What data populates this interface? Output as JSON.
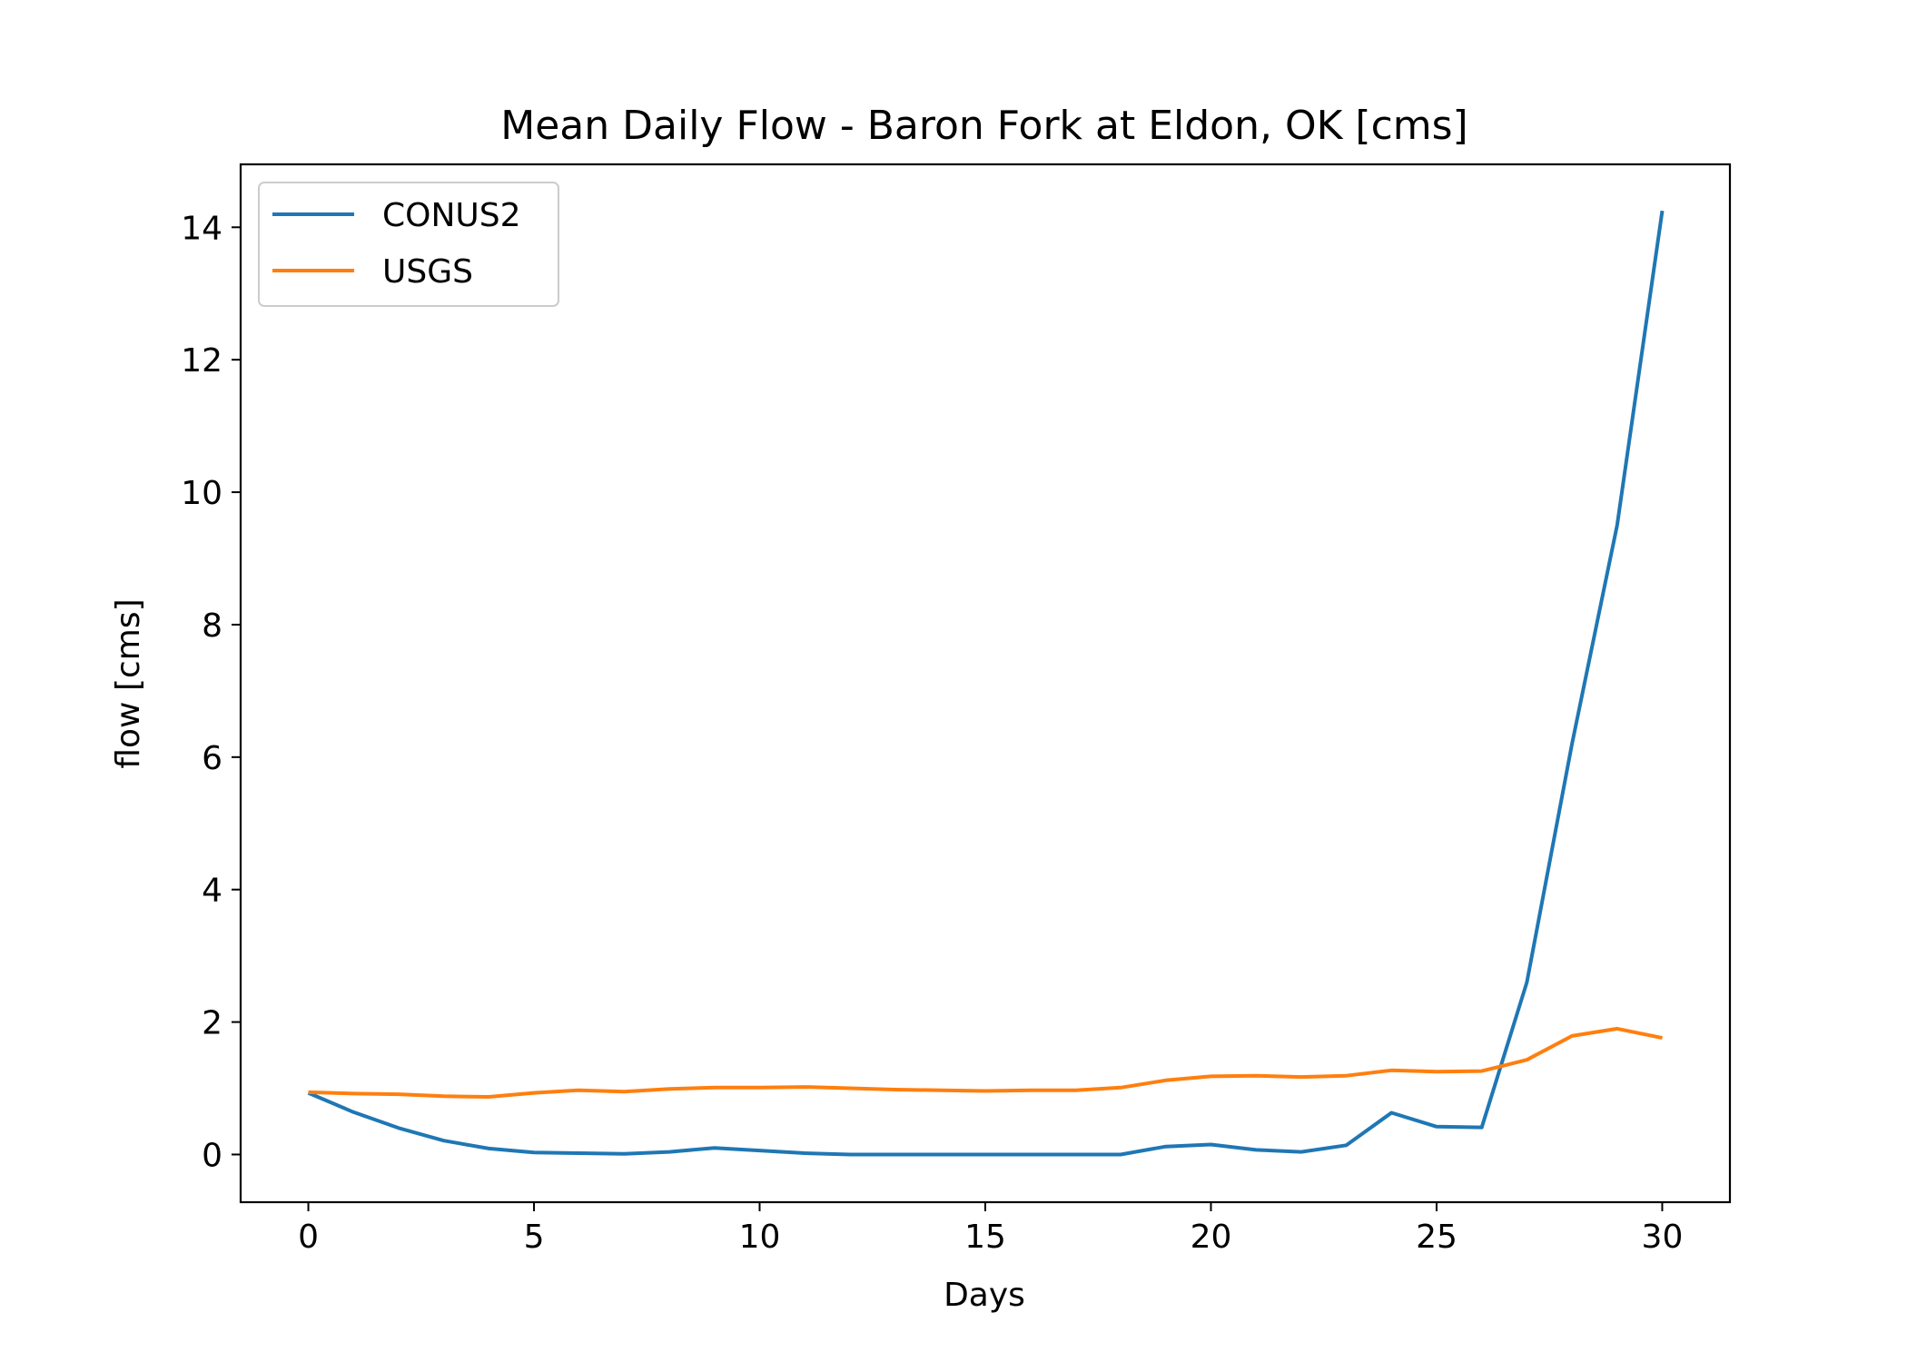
{
  "chart_data": {
    "type": "line",
    "title": "Mean Daily Flow - Baron Fork at Eldon, OK [cms]",
    "xlabel": "Days",
    "ylabel": "flow [cms]",
    "xlim": [
      -1.5,
      31.5
    ],
    "ylim": [
      -0.72,
      14.95
    ],
    "xticks": [
      0,
      5,
      10,
      15,
      20,
      25,
      30
    ],
    "yticks": [
      0,
      2,
      4,
      6,
      8,
      10,
      12,
      14
    ],
    "grid": false,
    "legend_position": "upper left",
    "x": [
      0,
      1,
      2,
      3,
      4,
      5,
      6,
      7,
      8,
      9,
      10,
      11,
      12,
      13,
      14,
      15,
      16,
      17,
      18,
      19,
      20,
      21,
      22,
      23,
      24,
      25,
      26,
      27,
      28,
      29,
      30
    ],
    "series": [
      {
        "name": "CONUS2",
        "color": "#1f77b4",
        "values": [
          0.93,
          0.64,
          0.4,
          0.21,
          0.09,
          0.03,
          0.02,
          0.01,
          0.04,
          0.1,
          0.06,
          0.02,
          0.0,
          0.0,
          0.0,
          0.0,
          0.0,
          0.0,
          0.0,
          0.12,
          0.15,
          0.07,
          0.04,
          0.14,
          0.63,
          0.42,
          0.41,
          2.6,
          6.2,
          9.5,
          14.25
        ]
      },
      {
        "name": "USGS",
        "color": "#ff7f0e",
        "values": [
          0.94,
          0.92,
          0.91,
          0.88,
          0.87,
          0.93,
          0.97,
          0.95,
          0.99,
          1.01,
          1.01,
          1.02,
          1.0,
          0.98,
          0.97,
          0.96,
          0.97,
          0.97,
          1.01,
          1.12,
          1.18,
          1.19,
          1.17,
          1.19,
          1.27,
          1.25,
          1.26,
          1.43,
          1.79,
          1.9,
          1.76
        ]
      }
    ]
  }
}
